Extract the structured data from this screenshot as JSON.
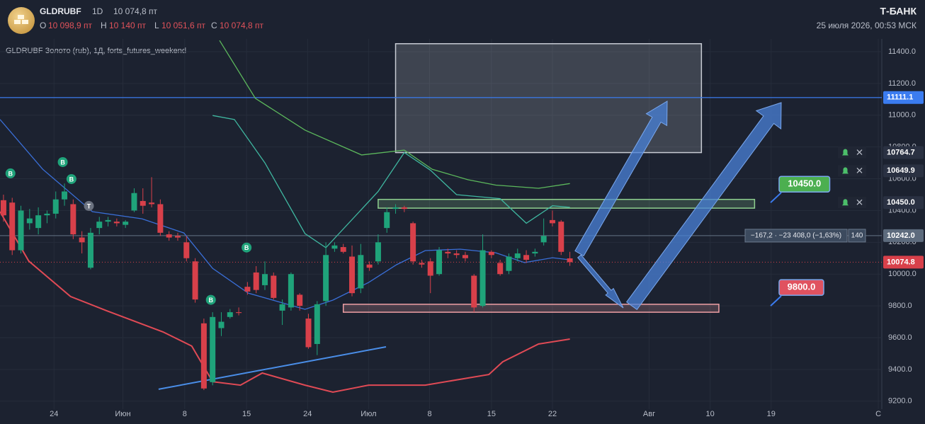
{
  "header": {
    "symbol": "GLDRUBF",
    "interval": "1D",
    "last": "10 074,8 пт",
    "ohlc": [
      {
        "key": "O",
        "value": "10 098,9 пт"
      },
      {
        "key": "H",
        "value": "10 140 пт"
      },
      {
        "key": "L",
        "value": "10 051,6 пт"
      },
      {
        "key": "C",
        "value": "10 074,8 пт"
      }
    ],
    "brand": "Т-БАНК",
    "datetime": "25 июля 2026, 00:53 МСК"
  },
  "chart_data": {
    "type": "candlestick",
    "title": "GLDRUBF Золото (rub), 1Д, forts_futures_weekend",
    "colors": {
      "up": "#1fa37a",
      "down": "#d8404a"
    },
    "xlim": [
      -0.4,
      100.8
    ],
    "ylim": [
      9150,
      11480
    ],
    "xticks": [
      {
        "value": 5.8,
        "label": "24"
      },
      {
        "value": 13.7,
        "label": "Июн"
      },
      {
        "value": 20.8,
        "label": "8"
      },
      {
        "value": 27.9,
        "label": "15"
      },
      {
        "value": 34.9,
        "label": "24"
      },
      {
        "value": 41.9,
        "label": "Июл"
      },
      {
        "value": 48.9,
        "label": "8"
      },
      {
        "value": 56,
        "label": "15"
      },
      {
        "value": 63,
        "label": "22"
      },
      {
        "value": 74.1,
        "label": "Авг"
      },
      {
        "value": 81.1,
        "label": "10"
      },
      {
        "value": 88.1,
        "label": "19"
      },
      {
        "value": 100.4,
        "label": "С"
      }
    ],
    "yticks": [
      {
        "value": 9200,
        "label": "9200.0"
      },
      {
        "value": 9400,
        "label": "9400.0"
      },
      {
        "value": 9600,
        "label": "9600.0"
      },
      {
        "value": 9800,
        "label": "9800.0"
      },
      {
        "value": 10000,
        "label": "10000.0"
      },
      {
        "value": 10200,
        "label": "10200.0"
      },
      {
        "value": 10400,
        "label": "10400.0"
      },
      {
        "value": 10600,
        "label": "10600.0"
      },
      {
        "value": 10800,
        "label": "10800.0"
      },
      {
        "value": 11000,
        "label": "11000.0"
      },
      {
        "value": 11200,
        "label": "11200.0"
      },
      {
        "value": 11400,
        "label": "11400.0"
      }
    ],
    "grid": true,
    "candles": {
      "x": [
        0,
        1,
        2,
        3,
        4,
        5,
        6,
        7,
        8,
        9,
        10,
        11,
        12,
        13,
        14,
        15,
        16,
        17,
        18,
        19,
        20,
        21,
        22,
        23,
        24,
        25,
        26,
        27,
        28,
        29,
        30,
        31,
        32,
        33,
        34,
        35,
        36,
        37,
        38,
        39,
        40,
        41,
        42,
        43,
        44,
        45,
        46,
        47,
        48,
        49,
        50,
        51,
        52,
        53,
        54,
        55,
        56,
        57,
        58,
        59,
        60,
        61,
        62,
        63,
        64,
        65
      ],
      "open": [
        10465,
        10450,
        10150,
        10320,
        10290,
        10370,
        10380,
        10470,
        10440,
        10230,
        10040,
        10290,
        10330,
        10330,
        10310,
        10400,
        10460,
        10450,
        10440,
        10250,
        10240,
        10200,
        10080,
        9690,
        9320,
        9660,
        9730,
        9760,
        9920,
        10010,
        9930,
        9990,
        9770,
        9790,
        9870,
        9720,
        9560,
        9830,
        10160,
        10170,
        10110,
        9910,
        10060,
        10080,
        10290,
        10410,
        10420,
        10320,
        10070,
        10080,
        10000,
        10140,
        10130,
        10120,
        9990,
        9800,
        10140,
        10070,
        10020,
        10100,
        10120,
        10130,
        10200,
        10340,
        10330,
        10098.9
      ],
      "high": [
        10500,
        10480,
        10430,
        10410,
        10420,
        10400,
        10520,
        10570,
        10470,
        10270,
        10290,
        10360,
        10360,
        10350,
        10340,
        10540,
        10540,
        10610,
        10470,
        10270,
        10260,
        10240,
        10100,
        9720,
        9760,
        9760,
        9780,
        9790,
        9950,
        10050,
        10080,
        10010,
        9840,
        10010,
        9880,
        9750,
        9830,
        10200,
        10200,
        10190,
        10180,
        10190,
        10080,
        10250,
        10420,
        10440,
        10430,
        10330,
        10090,
        10100,
        10170,
        10160,
        10150,
        10140,
        10000,
        10250,
        10150,
        10090,
        10130,
        10160,
        10150,
        10160,
        10350,
        10400,
        10340,
        10140
      ],
      "low": [
        10330,
        10120,
        10130,
        10280,
        10250,
        10320,
        10350,
        10430,
        10220,
        10130,
        10030,
        10250,
        10300,
        10300,
        10290,
        10390,
        10380,
        10420,
        10240,
        10210,
        10210,
        10080,
        9820,
        9270,
        9300,
        9610,
        9720,
        9740,
        9870,
        9880,
        9900,
        9840,
        9680,
        9770,
        9770,
        9530,
        9490,
        9800,
        10140,
        10130,
        9860,
        9880,
        10020,
        10060,
        10260,
        10380,
        10390,
        10060,
        10040,
        9880,
        9990,
        10100,
        10100,
        10080,
        9760,
        9790,
        10100,
        9990,
        10000,
        10080,
        10070,
        10110,
        10180,
        10300,
        10120,
        10051.6
      ],
      "close": [
        10370,
        10150,
        10400,
        10350,
        10370,
        10380,
        10470,
        10520,
        10250,
        10200,
        10260,
        10330,
        10340,
        10320,
        10330,
        10510,
        10430,
        10440,
        10260,
        10230,
        10230,
        10100,
        9840,
        9280,
        9730,
        9700,
        9760,
        9755,
        9890,
        9900,
        10000,
        9850,
        9810,
        10000,
        9800,
        9540,
        9810,
        10120,
        10180,
        10140,
        9880,
        10120,
        10040,
        10200,
        10390,
        10420,
        10410,
        10080,
        10060,
        9990,
        10150,
        10130,
        10120,
        10100,
        9790,
        10150,
        10120,
        10000,
        10110,
        10130,
        10090,
        10140,
        10240,
        10320,
        10140,
        10074.8
      ]
    },
    "series": [
      {
        "color": "#5cb85c",
        "x": [
          24.8,
          28.9,
          34.6,
          41.1,
          46,
          49.2,
          53.3,
          56.5,
          61.4,
          65
        ],
        "values": [
          11470,
          11106,
          10906,
          10750,
          10780,
          10660,
          10594,
          10560,
          10540,
          10570
        ]
      },
      {
        "color": "#3fb7a0",
        "x": [
          24,
          26.5,
          30,
          34.6,
          37,
          43,
          46,
          49,
          52,
          57,
          60,
          63,
          65
        ],
        "values": [
          10998,
          10973,
          10700,
          10255,
          10166,
          10520,
          10765,
          10654,
          10500,
          10475,
          10320,
          10430,
          10420
        ]
      },
      {
        "color": "#3a6fd8",
        "x": [
          -0.4,
          4.5,
          10.2,
          15.9,
          20.7,
          24,
          28.1,
          34.6,
          37.8,
          41.9,
          45.1,
          48.4,
          52.4,
          56.5,
          59.8,
          63,
          65
        ],
        "values": [
          10973,
          10660,
          10393,
          10348,
          10259,
          10036,
          9880,
          9778,
          9836,
          9947,
          10059,
          10148,
          10157,
          10134,
          10072,
          10103,
          10090
        ]
      },
      {
        "color": "#e04a55",
        "x": [
          -0.4,
          2.9,
          7.7,
          11.8,
          18.3,
          21.6,
          24,
          27.2,
          29.7,
          34.6,
          37.8,
          41.9,
          48.4,
          55.7,
          57.3,
          61.4,
          65
        ],
        "values": [
          10393,
          10082,
          9859,
          9770,
          9636,
          9547,
          9323,
          9301,
          9377,
          9301,
          9257,
          9301,
          9301,
          9368,
          9448,
          9560,
          9591
        ]
      }
    ],
    "trend_lines": [
      {
        "color": "#4a8ee8",
        "x": [
          17.8,
          43.9
        ],
        "values": [
          9275,
          9542
        ]
      }
    ],
    "zones": [
      {
        "x": [
          45,
          80.1
        ],
        "y": [
          10764.7,
          11450
        ],
        "color": "#c8ccd4"
      },
      {
        "x": [
          43,
          86.2
        ],
        "y": [
          10415,
          10470
        ],
        "color": "#8fd18f"
      },
      {
        "x": [
          39,
          82.1
        ],
        "y": [
          9760,
          9810
        ],
        "color": "#f0a0a5"
      }
    ],
    "levels": [
      {
        "value": 11111.1,
        "color": "#3b7cf0",
        "line": "solid"
      },
      {
        "value": 10764.7,
        "color": "#2a3142",
        "line": "none"
      },
      {
        "value": 10649.9,
        "color": "#2a3142",
        "line": "none"
      },
      {
        "value": {
          "value": 10450,
          "label": "10450.0"
        },
        "color": "#2a3142",
        "line": "none"
      },
      {
        "value": {
          "value": 10242,
          "label": "10242.0"
        },
        "color": "#5d6b7d",
        "line": "solid"
      },
      {
        "value": 10074.8,
        "color": "#d8404a",
        "line": "dotted"
      }
    ],
    "alerts": [
      10764.7,
      10649.9,
      10450
    ],
    "badges": [
      {
        "value": 10450,
        "label": "10450.0",
        "color": "#4caf50"
      },
      {
        "value": 9800,
        "label": "9800.0",
        "color": "#e05260"
      }
    ],
    "markers": [
      {
        "label": "B",
        "x": 0.8,
        "y": 10634
      },
      {
        "label": "B",
        "x": 6.8,
        "y": 10705
      },
      {
        "label": "B",
        "x": 7.8,
        "y": 10598
      },
      {
        "label": "T",
        "x": 9.8,
        "y": 10429
      },
      {
        "label": "B",
        "x": 23.8,
        "y": 9838
      },
      {
        "label": "B",
        "x": 27.9,
        "y": 10167
      }
    ],
    "measure": {
      "label": "−167,2 · −23 408,0 (−1,63%)",
      "bars": 140
    }
  }
}
